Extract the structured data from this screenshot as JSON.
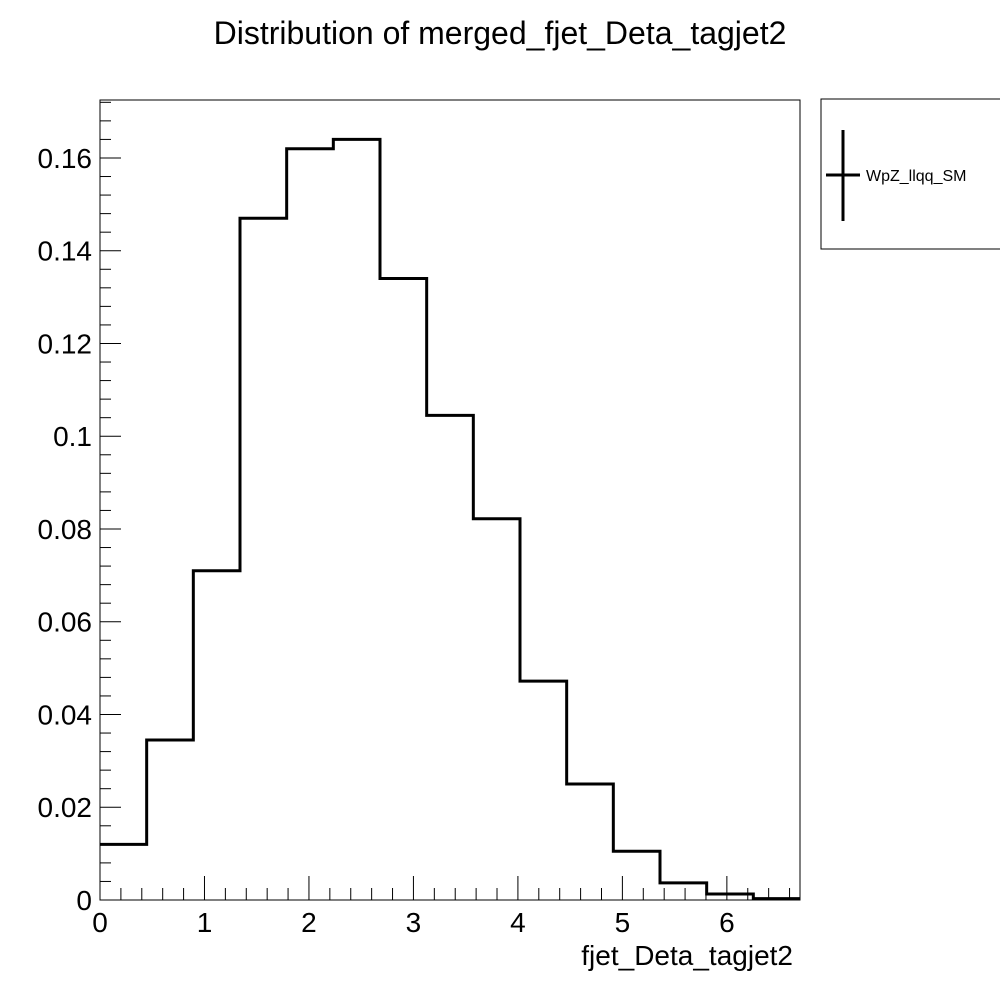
{
  "chart_data": {
    "type": "bar",
    "title": "Distribution of merged_fjet_Deta_tagjet2",
    "xlabel": "fjet_Deta_tagjet2",
    "ylabel": "",
    "xlim": [
      0,
      6.7
    ],
    "ylim": [
      0,
      0.1725
    ],
    "x_ticks": [
      0,
      1,
      2,
      3,
      4,
      5,
      6
    ],
    "x_tick_labels": [
      "0",
      "1",
      "2",
      "3",
      "4",
      "5",
      "6"
    ],
    "y_ticks": [
      0,
      0.02,
      0.04,
      0.06,
      0.08,
      0.1,
      0.12,
      0.14,
      0.16
    ],
    "y_tick_labels": [
      "0",
      "0.02",
      "0.04",
      "0.06",
      "0.08",
      "0.1",
      "0.12",
      "0.14",
      "0.16"
    ],
    "bin_edges": [
      0,
      0.4467,
      0.8933,
      1.34,
      1.7867,
      2.2333,
      2.68,
      3.1267,
      3.5733,
      4.02,
      4.4667,
      4.9133,
      5.36,
      5.8067,
      6.2533,
      6.7
    ],
    "series": [
      {
        "name": "WpZ_llqq_SM",
        "values": [
          0.012,
          0.0345,
          0.071,
          0.147,
          0.162,
          0.164,
          0.134,
          0.1045,
          0.0822,
          0.0472,
          0.025,
          0.0105,
          0.0037,
          0.0013,
          0.0003
        ]
      }
    ],
    "grid": false,
    "legend": "top-right outside"
  }
}
